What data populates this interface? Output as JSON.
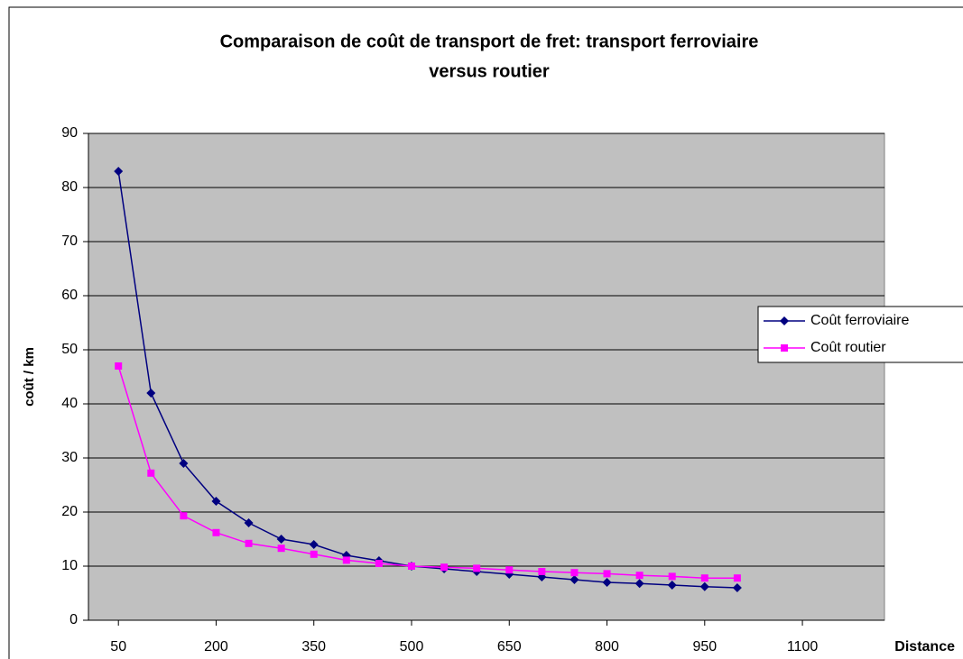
{
  "chart_data": {
    "type": "line",
    "title": [
      "Comparaison de coût de transport de fret: transport ferroviaire",
      "versus routier"
    ],
    "x_label": "Distance",
    "y_label": "coût / km",
    "x": [
      50,
      100,
      150,
      200,
      250,
      300,
      350,
      400,
      450,
      500,
      550,
      600,
      650,
      700,
      750,
      800,
      850,
      900,
      950,
      1000
    ],
    "series": [
      {
        "name": "Coût ferroviaire",
        "color": "#000080",
        "marker": "diamond",
        "values": [
          83,
          42,
          29,
          22,
          18,
          15,
          14,
          12,
          11,
          10,
          9.5,
          9,
          8.5,
          8,
          7.5,
          7,
          6.8,
          6.5,
          6.2,
          6
        ]
      },
      {
        "name": "Coût routier",
        "color": "#ff00ff",
        "marker": "square",
        "values": [
          47,
          27.2,
          19.3,
          16.2,
          14.2,
          13.3,
          12.2,
          11.1,
          10.5,
          10,
          9.8,
          9.6,
          9.3,
          9,
          8.8,
          8.6,
          8.3,
          8.1,
          7.8,
          7.8
        ]
      }
    ],
    "xlim": [
      4,
      1226
    ],
    "xticks": [
      50,
      200,
      350,
      500,
      650,
      800,
      950,
      1100
    ],
    "ylim": [
      0,
      90
    ],
    "yticks": [
      0,
      10,
      20,
      30,
      40,
      50,
      60,
      70,
      80,
      90
    ],
    "grid": true,
    "plot_background": "#c0c0c0",
    "legend": "right"
  }
}
